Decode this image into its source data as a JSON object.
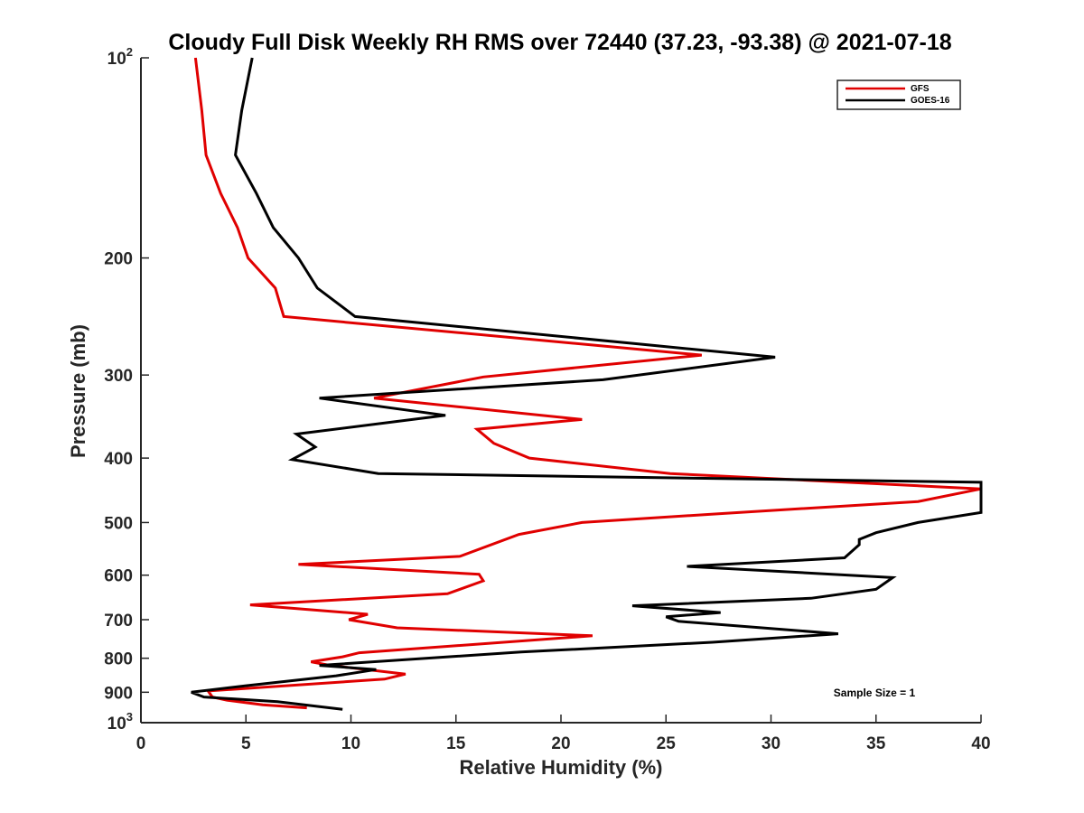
{
  "chart_data": {
    "type": "line",
    "title": "Cloudy Full Disk Weekly RH RMS over 72440 (37.23, -93.38) @ 2021-07-18",
    "xlabel": "Relative Humidity (%)",
    "ylabel": "Pressure (mb)",
    "xlim": [
      0,
      40
    ],
    "ylim": [
      100,
      1000
    ],
    "y_scale": "log",
    "y_reversed": true,
    "grid": false,
    "legend_position": "top-right",
    "x_ticks": [
      "0",
      "5",
      "10",
      "15",
      "20",
      "25",
      "30",
      "35",
      "40"
    ],
    "y_ticks": [
      {
        "value": 100,
        "base": "10",
        "sup": "2"
      },
      {
        "value": 200,
        "label": "200"
      },
      {
        "value": 300,
        "label": "300"
      },
      {
        "value": 400,
        "label": "400"
      },
      {
        "value": 500,
        "label": "500"
      },
      {
        "value": 600,
        "label": "600"
      },
      {
        "value": 700,
        "label": "700"
      },
      {
        "value": 800,
        "label": "800"
      },
      {
        "value": 900,
        "label": "900"
      },
      {
        "value": 1000,
        "base": "10",
        "sup": "3"
      }
    ],
    "annotation": "Sample Size = 1",
    "series": [
      {
        "name": "GFS",
        "color": "#e00000",
        "points": [
          [
            2.6,
            100
          ],
          [
            2.9,
            120
          ],
          [
            3.1,
            140
          ],
          [
            3.8,
            160
          ],
          [
            4.6,
            180
          ],
          [
            5.1,
            200
          ],
          [
            6.4,
            222
          ],
          [
            6.8,
            245
          ],
          [
            26.7,
            280
          ],
          [
            16.3,
            302
          ],
          [
            11.1,
            325
          ],
          [
            21.0,
            350
          ],
          [
            16.0,
            362
          ],
          [
            16.8,
            380
          ],
          [
            18.5,
            400
          ],
          [
            25.2,
            422
          ],
          [
            40.0,
            445
          ],
          [
            37.0,
            465
          ],
          [
            27.5,
            485
          ],
          [
            21.0,
            500
          ],
          [
            18.0,
            521
          ],
          [
            15.2,
            562
          ],
          [
            7.5,
            578
          ],
          [
            16.1,
            598
          ],
          [
            16.3,
            612
          ],
          [
            14.6,
            640
          ],
          [
            5.2,
            665
          ],
          [
            10.8,
            687
          ],
          [
            9.9,
            700
          ],
          [
            12.2,
            720
          ],
          [
            21.5,
            740
          ],
          [
            10.4,
            785
          ],
          [
            9.6,
            796
          ],
          [
            8.1,
            810
          ],
          [
            9.0,
            820
          ],
          [
            12.6,
            845
          ],
          [
            11.6,
            860
          ],
          [
            3.2,
            896
          ],
          [
            3.4,
            915
          ],
          [
            4.1,
            925
          ],
          [
            5.8,
            940
          ],
          [
            7.9,
            950
          ]
        ]
      },
      {
        "name": "GOES-16",
        "color": "#000000",
        "points": [
          [
            5.3,
            100
          ],
          [
            4.8,
            120
          ],
          [
            4.5,
            140
          ],
          [
            5.5,
            160
          ],
          [
            6.3,
            180
          ],
          [
            7.5,
            200
          ],
          [
            8.4,
            222
          ],
          [
            10.2,
            245
          ],
          [
            30.2,
            282
          ],
          [
            22.0,
            305
          ],
          [
            8.5,
            325
          ],
          [
            14.5,
            345
          ],
          [
            7.4,
            368
          ],
          [
            8.3,
            385
          ],
          [
            7.2,
            402
          ],
          [
            11.3,
            422
          ],
          [
            40.0,
            435
          ],
          [
            40.0,
            483
          ],
          [
            37.0,
            500
          ],
          [
            35.0,
            518
          ],
          [
            34.2,
            530
          ],
          [
            34.2,
            540
          ],
          [
            33.5,
            565
          ],
          [
            26.0,
            582
          ],
          [
            35.8,
            605
          ],
          [
            35.0,
            630
          ],
          [
            31.9,
            650
          ],
          [
            23.4,
            667
          ],
          [
            27.6,
            683
          ],
          [
            25.0,
            693
          ],
          [
            25.6,
            704
          ],
          [
            33.2,
            735
          ],
          [
            27.2,
            757
          ],
          [
            18.1,
            783
          ],
          [
            8.5,
            820
          ],
          [
            11.2,
            832
          ],
          [
            9.3,
            850
          ],
          [
            5.0,
            880
          ],
          [
            2.4,
            900
          ],
          [
            3.0,
            915
          ],
          [
            6.5,
            930
          ],
          [
            9.6,
            955
          ]
        ]
      }
    ]
  }
}
